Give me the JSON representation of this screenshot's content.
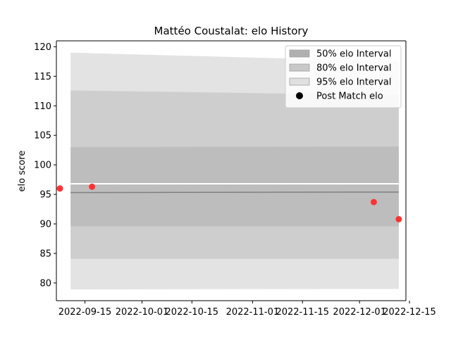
{
  "chart_data": {
    "type": "area",
    "title": "Mattéo Coustalat: elo History",
    "xlabel": "",
    "ylabel": "elo score",
    "x_range": [
      "2022-09-07",
      "2022-12-14"
    ],
    "ylim": [
      77,
      121
    ],
    "x_ticks": [
      "2022-09-15",
      "2022-10-01",
      "2022-10-15",
      "2022-11-01",
      "2022-11-15",
      "2022-12-01",
      "2022-12-15"
    ],
    "y_ticks": [
      80,
      85,
      90,
      95,
      100,
      105,
      110,
      115,
      120
    ],
    "grid": false,
    "legend_position": "top-right",
    "bands": [
      {
        "name": "95% elo Interval",
        "color": "#e3e3e3",
        "x": [
          "2022-09-11",
          "2022-12-12"
        ],
        "upper": [
          119.0,
          117.5
        ],
        "lower": [
          78.9,
          79.0
        ]
      },
      {
        "name": "80% elo Interval",
        "color": "#cecece",
        "x": [
          "2022-09-11",
          "2022-12-12"
        ],
        "upper": [
          112.6,
          111.8
        ],
        "lower": [
          84.1,
          84.1
        ]
      },
      {
        "name": "50% elo Interval",
        "color": "#bdbdbd",
        "x": [
          "2022-09-11",
          "2022-12-12"
        ],
        "upper": [
          103.0,
          103.1
        ],
        "lower": [
          89.6,
          89.6
        ]
      }
    ],
    "mean_line": {
      "x": [
        "2022-09-11",
        "2022-12-12"
      ],
      "y": [
        95.3,
        95.4
      ],
      "color": "#808080"
    },
    "white_line": {
      "x": [
        "2022-09-11",
        "2022-12-12"
      ],
      "y": [
        96.8,
        96.8
      ]
    },
    "points": {
      "name": "Post Match elo",
      "color": "#ff3333",
      "x": [
        "2022-09-08",
        "2022-09-17",
        "2022-12-05",
        "2022-12-12"
      ],
      "y": [
        96.0,
        96.3,
        93.7,
        90.8
      ]
    },
    "legend": [
      {
        "label": "50% elo Interval",
        "kind": "patch",
        "color": "#b0b0b0"
      },
      {
        "label": "80% elo Interval",
        "kind": "patch",
        "color": "#c8c8c8"
      },
      {
        "label": "95% elo Interval",
        "kind": "patch",
        "color": "#e0e0e0"
      },
      {
        "label": "Post Match elo",
        "kind": "marker",
        "color": "#000000"
      }
    ]
  }
}
